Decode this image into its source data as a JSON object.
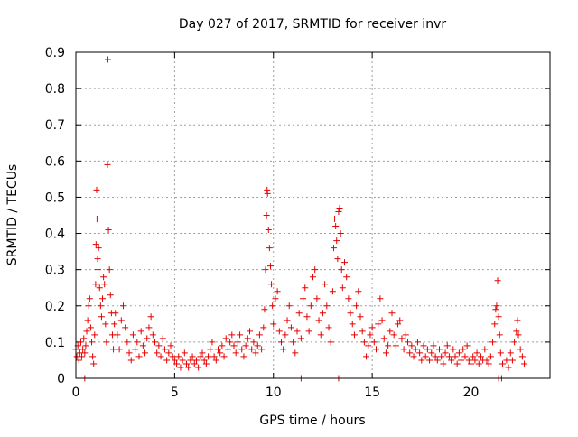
{
  "chart_data": {
    "type": "scatter",
    "title": "Day 027 of 2017, SRMTID for receiver invr",
    "xlabel": "GPS time / hours",
    "ylabel": "SRMTID / TECUs",
    "xlim": [
      0,
      24
    ],
    "ylim": [
      0,
      0.9
    ],
    "x_ticks": [
      "0",
      "5",
      "10",
      "15",
      "20"
    ],
    "x_tick_values": [
      0,
      5,
      10,
      15,
      20
    ],
    "y_ticks": [
      "0",
      "0.1",
      "0.2",
      "0.3",
      "0.4",
      "0.5",
      "0.6",
      "0.7",
      "0.8",
      "0.9"
    ],
    "y_tick_values": [
      0,
      0.1,
      0.2,
      0.3,
      0.4,
      0.5,
      0.6,
      0.7,
      0.8,
      0.9
    ],
    "grid": true,
    "marker": "+",
    "color": "#e60000",
    "series": [
      {
        "name": "SRMTID",
        "points": [
          [
            0.0,
            0.08
          ],
          [
            0.05,
            0.06
          ],
          [
            0.1,
            0.09
          ],
          [
            0.15,
            0.05
          ],
          [
            0.2,
            0.07
          ],
          [
            0.25,
            0.1
          ],
          [
            0.3,
            0.06
          ],
          [
            0.35,
            0.08
          ],
          [
            0.4,
            0.11
          ],
          [
            0.45,
            0.07
          ],
          [
            0.5,
            0.09
          ],
          [
            0.55,
            0.13
          ],
          [
            0.6,
            0.16
          ],
          [
            0.65,
            0.2
          ],
          [
            0.7,
            0.22
          ],
          [
            0.75,
            0.14
          ],
          [
            0.8,
            0.1
          ],
          [
            0.85,
            0.06
          ],
          [
            0.9,
            0.04
          ],
          [
            0.95,
            0.12
          ],
          [
            1.0,
            0.26
          ],
          [
            1.02,
            0.37
          ],
          [
            1.05,
            0.52
          ],
          [
            1.07,
            0.44
          ],
          [
            1.1,
            0.33
          ],
          [
            1.12,
            0.3
          ],
          [
            1.15,
            0.36
          ],
          [
            1.2,
            0.25
          ],
          [
            1.25,
            0.2
          ],
          [
            1.3,
            0.17
          ],
          [
            1.35,
            0.22
          ],
          [
            1.4,
            0.28
          ],
          [
            1.45,
            0.26
          ],
          [
            1.5,
            0.15
          ],
          [
            1.55,
            0.1
          ],
          [
            1.6,
            0.59
          ],
          [
            1.62,
            0.88
          ],
          [
            1.65,
            0.41
          ],
          [
            1.7,
            0.3
          ],
          [
            1.75,
            0.23
          ],
          [
            1.8,
            0.18
          ],
          [
            1.85,
            0.12
          ],
          [
            1.9,
            0.08
          ],
          [
            1.95,
            0.15
          ],
          [
            2.0,
            0.18
          ],
          [
            2.1,
            0.12
          ],
          [
            2.2,
            0.08
          ],
          [
            2.3,
            0.16
          ],
          [
            2.4,
            0.2
          ],
          [
            2.5,
            0.14
          ],
          [
            2.6,
            0.1
          ],
          [
            2.7,
            0.07
          ],
          [
            2.8,
            0.05
          ],
          [
            2.9,
            0.12
          ],
          [
            3.0,
            0.08
          ],
          [
            3.1,
            0.1
          ],
          [
            3.2,
            0.06
          ],
          [
            3.3,
            0.13
          ],
          [
            3.4,
            0.09
          ],
          [
            3.5,
            0.07
          ],
          [
            3.6,
            0.11
          ],
          [
            3.7,
            0.14
          ],
          [
            3.8,
            0.17
          ],
          [
            3.9,
            0.12
          ],
          [
            4.0,
            0.1
          ],
          [
            4.1,
            0.07
          ],
          [
            4.2,
            0.09
          ],
          [
            4.3,
            0.06
          ],
          [
            4.4,
            0.11
          ],
          [
            4.5,
            0.08
          ],
          [
            4.6,
            0.05
          ],
          [
            4.7,
            0.07
          ],
          [
            4.8,
            0.09
          ],
          [
            4.9,
            0.06
          ],
          [
            5.0,
            0.05
          ],
          [
            5.1,
            0.04
          ],
          [
            5.2,
            0.06
          ],
          [
            5.3,
            0.03
          ],
          [
            5.4,
            0.05
          ],
          [
            5.5,
            0.07
          ],
          [
            5.6,
            0.04
          ],
          [
            5.7,
            0.03
          ],
          [
            5.8,
            0.05
          ],
          [
            5.9,
            0.06
          ],
          [
            6.0,
            0.04
          ],
          [
            6.1,
            0.05
          ],
          [
            6.2,
            0.03
          ],
          [
            6.3,
            0.06
          ],
          [
            6.4,
            0.07
          ],
          [
            6.5,
            0.05
          ],
          [
            6.6,
            0.04
          ],
          [
            6.7,
            0.06
          ],
          [
            6.8,
            0.08
          ],
          [
            6.9,
            0.1
          ],
          [
            7.0,
            0.06
          ],
          [
            7.1,
            0.05
          ],
          [
            7.2,
            0.08
          ],
          [
            7.3,
            0.07
          ],
          [
            7.4,
            0.09
          ],
          [
            7.5,
            0.06
          ],
          [
            7.6,
            0.11
          ],
          [
            7.7,
            0.08
          ],
          [
            7.8,
            0.1
          ],
          [
            7.9,
            0.12
          ],
          [
            8.0,
            0.09
          ],
          [
            8.1,
            0.07
          ],
          [
            8.2,
            0.1
          ],
          [
            8.3,
            0.12
          ],
          [
            8.4,
            0.08
          ],
          [
            8.5,
            0.06
          ],
          [
            8.6,
            0.09
          ],
          [
            8.7,
            0.11
          ],
          [
            8.8,
            0.13
          ],
          [
            8.9,
            0.08
          ],
          [
            9.0,
            0.1
          ],
          [
            9.1,
            0.07
          ],
          [
            9.2,
            0.09
          ],
          [
            9.3,
            0.12
          ],
          [
            9.4,
            0.08
          ],
          [
            9.5,
            0.14
          ],
          [
            9.55,
            0.19
          ],
          [
            9.6,
            0.3
          ],
          [
            9.65,
            0.45
          ],
          [
            9.68,
            0.52
          ],
          [
            9.7,
            0.51
          ],
          [
            9.75,
            0.41
          ],
          [
            9.8,
            0.36
          ],
          [
            9.85,
            0.31
          ],
          [
            9.9,
            0.26
          ],
          [
            9.95,
            0.2
          ],
          [
            10.0,
            0.15
          ],
          [
            10.1,
            0.22
          ],
          [
            10.2,
            0.24
          ],
          [
            10.3,
            0.13
          ],
          [
            10.4,
            0.1
          ],
          [
            10.5,
            0.08
          ],
          [
            10.6,
            0.12
          ],
          [
            10.7,
            0.16
          ],
          [
            10.8,
            0.2
          ],
          [
            10.9,
            0.14
          ],
          [
            11.0,
            0.1
          ],
          [
            11.1,
            0.07
          ],
          [
            11.2,
            0.13
          ],
          [
            11.3,
            0.18
          ],
          [
            11.4,
            0.11
          ],
          [
            11.5,
            0.22
          ],
          [
            11.6,
            0.25
          ],
          [
            11.7,
            0.17
          ],
          [
            11.8,
            0.13
          ],
          [
            11.9,
            0.2
          ],
          [
            12.0,
            0.28
          ],
          [
            12.1,
            0.3
          ],
          [
            12.2,
            0.22
          ],
          [
            12.3,
            0.16
          ],
          [
            12.4,
            0.12
          ],
          [
            12.5,
            0.18
          ],
          [
            12.6,
            0.26
          ],
          [
            12.7,
            0.2
          ],
          [
            12.8,
            0.14
          ],
          [
            12.9,
            0.1
          ],
          [
            13.0,
            0.24
          ],
          [
            13.05,
            0.36
          ],
          [
            13.1,
            0.44
          ],
          [
            13.15,
            0.42
          ],
          [
            13.2,
            0.38
          ],
          [
            13.25,
            0.33
          ],
          [
            13.3,
            0.46
          ],
          [
            13.35,
            0.47
          ],
          [
            13.4,
            0.4
          ],
          [
            13.45,
            0.3
          ],
          [
            13.5,
            0.25
          ],
          [
            13.6,
            0.32
          ],
          [
            13.7,
            0.28
          ],
          [
            13.8,
            0.22
          ],
          [
            13.9,
            0.18
          ],
          [
            14.0,
            0.15
          ],
          [
            14.1,
            0.12
          ],
          [
            14.2,
            0.2
          ],
          [
            14.3,
            0.24
          ],
          [
            14.4,
            0.17
          ],
          [
            14.5,
            0.13
          ],
          [
            14.6,
            0.1
          ],
          [
            14.7,
            0.06
          ],
          [
            14.8,
            0.09
          ],
          [
            14.9,
            0.12
          ],
          [
            15.0,
            0.14
          ],
          [
            15.1,
            0.1
          ],
          [
            15.2,
            0.08
          ],
          [
            15.3,
            0.15
          ],
          [
            15.4,
            0.22
          ],
          [
            15.5,
            0.16
          ],
          [
            15.6,
            0.11
          ],
          [
            15.7,
            0.07
          ],
          [
            15.8,
            0.09
          ],
          [
            15.9,
            0.13
          ],
          [
            16.0,
            0.18
          ],
          [
            16.1,
            0.12
          ],
          [
            16.2,
            0.09
          ],
          [
            16.3,
            0.15
          ],
          [
            16.4,
            0.16
          ],
          [
            16.5,
            0.11
          ],
          [
            16.6,
            0.08
          ],
          [
            16.7,
            0.12
          ],
          [
            16.8,
            0.1
          ],
          [
            16.9,
            0.07
          ],
          [
            17.0,
            0.09
          ],
          [
            17.1,
            0.06
          ],
          [
            17.2,
            0.08
          ],
          [
            17.3,
            0.1
          ],
          [
            17.4,
            0.07
          ],
          [
            17.5,
            0.05
          ],
          [
            17.6,
            0.09
          ],
          [
            17.7,
            0.06
          ],
          [
            17.8,
            0.08
          ],
          [
            17.9,
            0.05
          ],
          [
            18.0,
            0.07
          ],
          [
            18.1,
            0.09
          ],
          [
            18.2,
            0.06
          ],
          [
            18.3,
            0.05
          ],
          [
            18.4,
            0.08
          ],
          [
            18.5,
            0.06
          ],
          [
            18.6,
            0.04
          ],
          [
            18.7,
            0.07
          ],
          [
            18.8,
            0.09
          ],
          [
            18.9,
            0.06
          ],
          [
            19.0,
            0.05
          ],
          [
            19.1,
            0.08
          ],
          [
            19.2,
            0.06
          ],
          [
            19.3,
            0.04
          ],
          [
            19.4,
            0.07
          ],
          [
            19.5,
            0.05
          ],
          [
            19.6,
            0.08
          ],
          [
            19.7,
            0.06
          ],
          [
            19.8,
            0.09
          ],
          [
            19.9,
            0.05
          ],
          [
            20.0,
            0.04
          ],
          [
            20.1,
            0.06
          ],
          [
            20.2,
            0.05
          ],
          [
            20.3,
            0.07
          ],
          [
            20.4,
            0.04
          ],
          [
            20.5,
            0.06
          ],
          [
            20.6,
            0.05
          ],
          [
            20.7,
            0.08
          ],
          [
            20.8,
            0.05
          ],
          [
            20.9,
            0.04
          ],
          [
            21.0,
            0.06
          ],
          [
            21.1,
            0.1
          ],
          [
            21.2,
            0.15
          ],
          [
            21.25,
            0.19
          ],
          [
            21.3,
            0.2
          ],
          [
            21.35,
            0.27
          ],
          [
            21.4,
            0.17
          ],
          [
            21.45,
            0.12
          ],
          [
            21.5,
            0.07
          ],
          [
            21.6,
            0.04
          ],
          [
            21.8,
            0.05
          ],
          [
            21.9,
            0.03
          ],
          [
            22.0,
            0.07
          ],
          [
            22.1,
            0.05
          ],
          [
            22.2,
            0.1
          ],
          [
            22.3,
            0.13
          ],
          [
            22.35,
            0.16
          ],
          [
            22.4,
            0.12
          ],
          [
            22.5,
            0.08
          ],
          [
            22.6,
            0.06
          ],
          [
            22.7,
            0.04
          ]
        ]
      },
      {
        "name": "zero-level markers",
        "points": [
          [
            0.45,
            0
          ],
          [
            11.4,
            0
          ],
          [
            13.3,
            0
          ],
          [
            21.4,
            0
          ],
          [
            21.55,
            0
          ]
        ]
      }
    ]
  }
}
